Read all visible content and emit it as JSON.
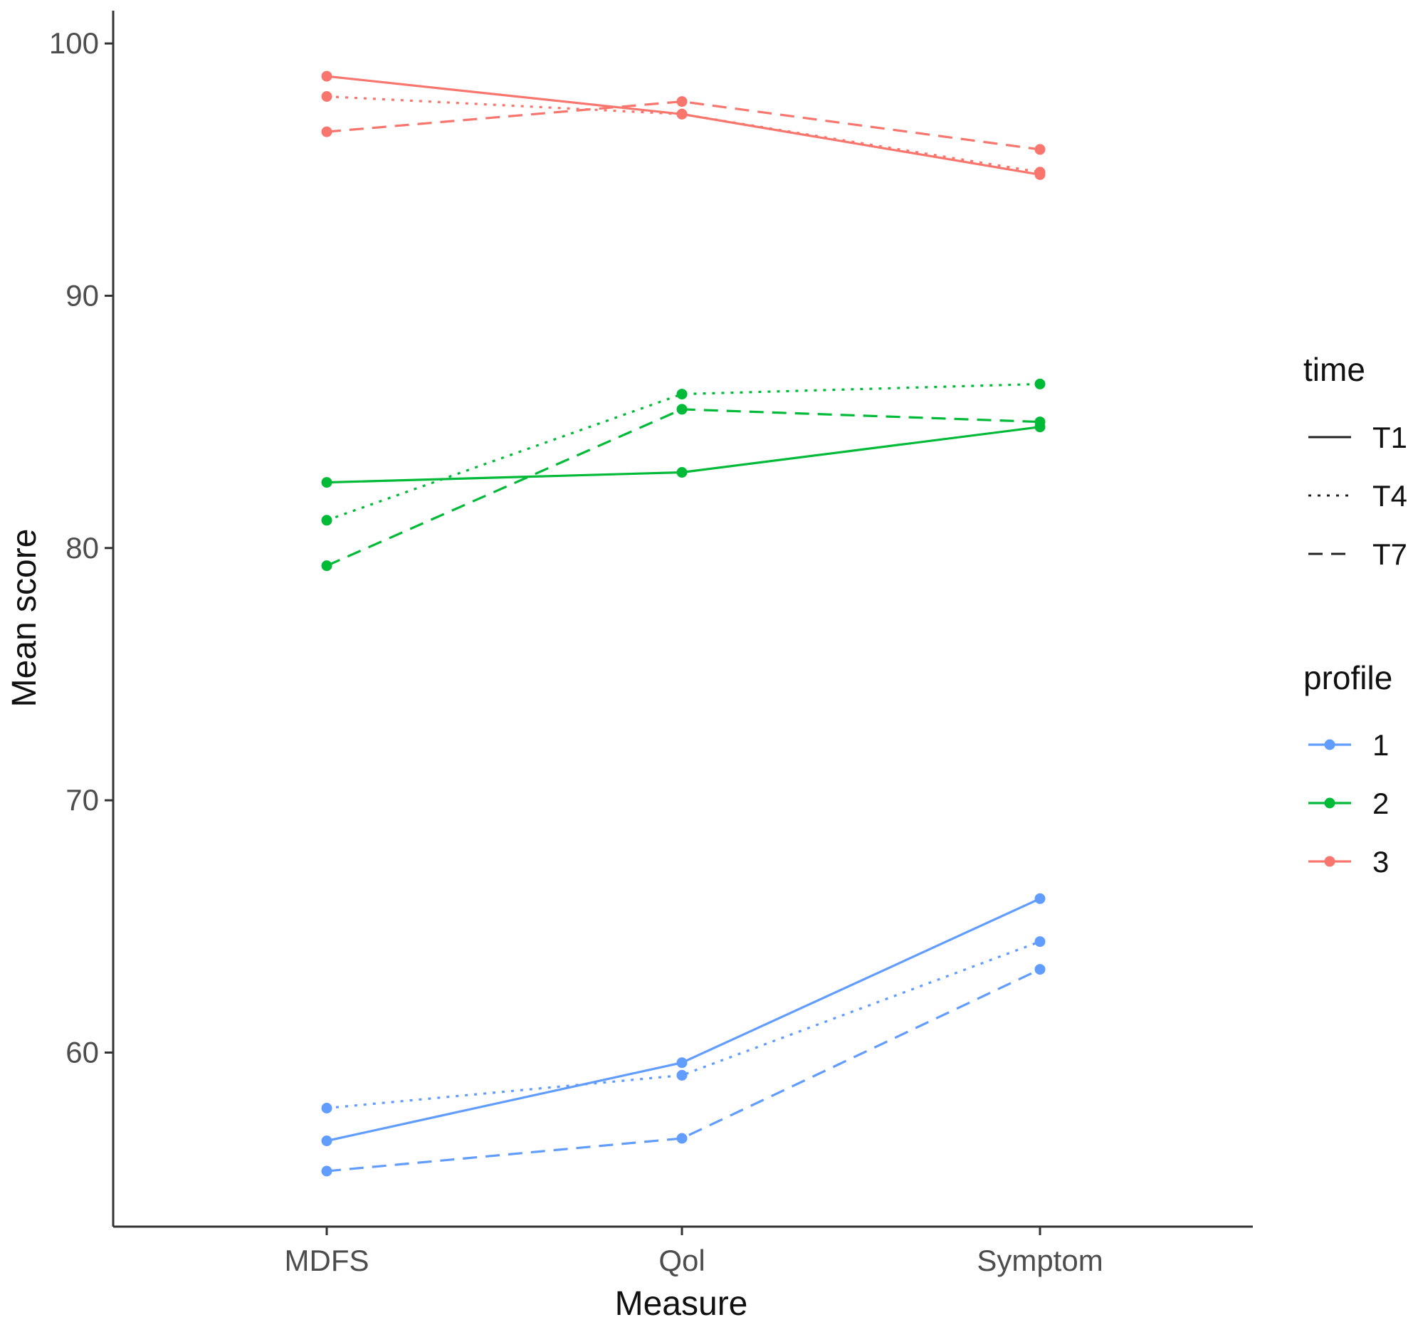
{
  "chart_data": {
    "type": "line",
    "title": "",
    "xlabel": "Measure",
    "ylabel": "Mean score",
    "categories": [
      "MDFS",
      "Qol",
      "Symptom"
    ],
    "ylim": [
      53.1,
      101.3
    ],
    "yticks": [
      60,
      70,
      80,
      90,
      100
    ],
    "ytick_labels": [
      "60",
      "70",
      "80",
      "90",
      "100"
    ],
    "grid": false,
    "legend_placement": "right",
    "legends": {
      "time": {
        "title": "time",
        "items": [
          {
            "label": "T1",
            "linetype": "solid"
          },
          {
            "label": "T4",
            "linetype": "dotted"
          },
          {
            "label": "T7",
            "linetype": "dashed"
          }
        ]
      },
      "profile": {
        "title": "profile",
        "items": [
          {
            "label": "1",
            "color": "#619CFF"
          },
          {
            "label": "2",
            "color": "#00BA38"
          },
          {
            "label": "3",
            "color": "#F8766D"
          }
        ]
      }
    },
    "series": [
      {
        "name": "profile 1, T1",
        "profile": "1",
        "time": "T1",
        "values": [
          56.5,
          59.6,
          66.1
        ]
      },
      {
        "name": "profile 1, T4",
        "profile": "1",
        "time": "T4",
        "values": [
          57.8,
          59.1,
          64.4
        ]
      },
      {
        "name": "profile 1, T7",
        "profile": "1",
        "time": "T7",
        "values": [
          55.3,
          56.6,
          63.3
        ]
      },
      {
        "name": "profile 2, T1",
        "profile": "2",
        "time": "T1",
        "values": [
          82.6,
          83.0,
          84.8
        ]
      },
      {
        "name": "profile 2, T4",
        "profile": "2",
        "time": "T4",
        "values": [
          81.1,
          86.1,
          86.5
        ]
      },
      {
        "name": "profile 2, T7",
        "profile": "2",
        "time": "T7",
        "values": [
          79.3,
          85.5,
          85.0
        ]
      },
      {
        "name": "profile 3, T1",
        "profile": "3",
        "time": "T1",
        "values": [
          98.7,
          97.2,
          94.8
        ]
      },
      {
        "name": "profile 3, T4",
        "profile": "3",
        "time": "T4",
        "values": [
          97.9,
          97.2,
          94.9
        ]
      },
      {
        "name": "profile 3, T7",
        "profile": "3",
        "time": "T7",
        "values": [
          96.5,
          97.7,
          95.8
        ]
      }
    ]
  }
}
